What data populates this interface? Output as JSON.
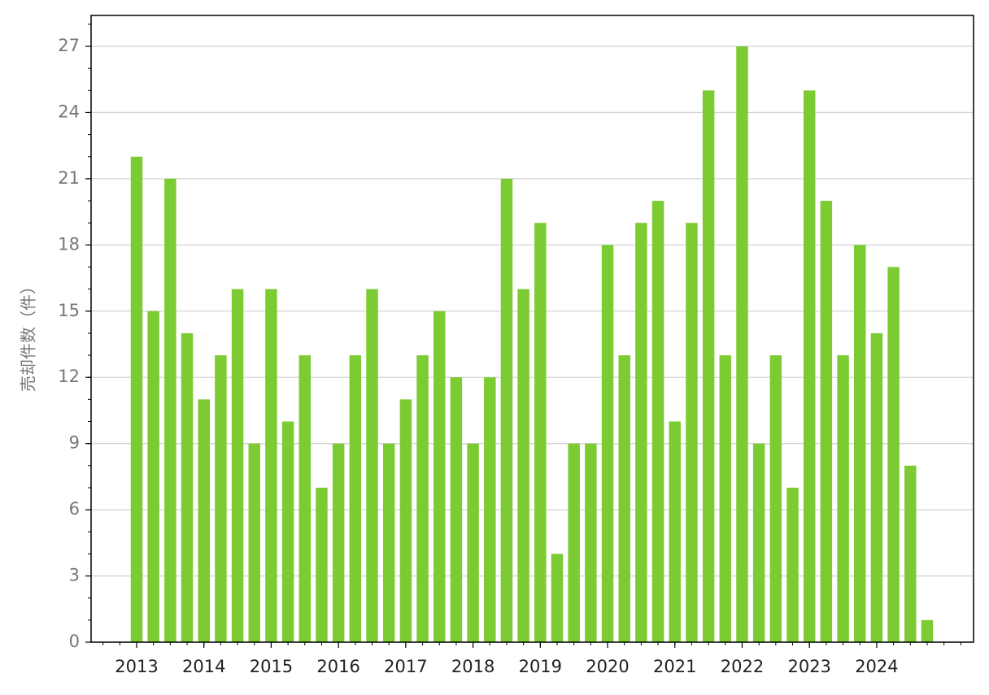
{
  "chart_data": {
    "type": "bar",
    "y_label": "売却件数（件）",
    "categories": [
      "2013",
      null,
      null,
      null,
      "2014",
      null,
      null,
      null,
      "2015",
      null,
      null,
      null,
      "2016",
      null,
      null,
      null,
      "2017",
      null,
      null,
      null,
      "2018",
      null,
      null,
      null,
      "2019",
      null,
      null,
      null,
      "2020",
      null,
      null,
      null,
      "2021",
      null,
      null,
      null,
      "2022",
      null,
      null,
      null,
      "2023",
      null,
      null,
      null,
      "2024",
      null,
      null,
      null
    ],
    "values": [
      22,
      15,
      21,
      14,
      11,
      13,
      16,
      9,
      16,
      10,
      13,
      7,
      9,
      13,
      16,
      9,
      11,
      13,
      15,
      12,
      9,
      12,
      21,
      16,
      19,
      4,
      9,
      9,
      18,
      13,
      19,
      20,
      10,
      19,
      25,
      13,
      27,
      9,
      13,
      7,
      25,
      20,
      13,
      18,
      14,
      17,
      8,
      1
    ],
    "color": "#7dcb32",
    "ylim": [
      0,
      28.4
    ],
    "yticks": [
      0,
      3,
      6,
      9,
      12,
      15,
      18,
      21,
      24,
      27
    ],
    "grid": true
  }
}
